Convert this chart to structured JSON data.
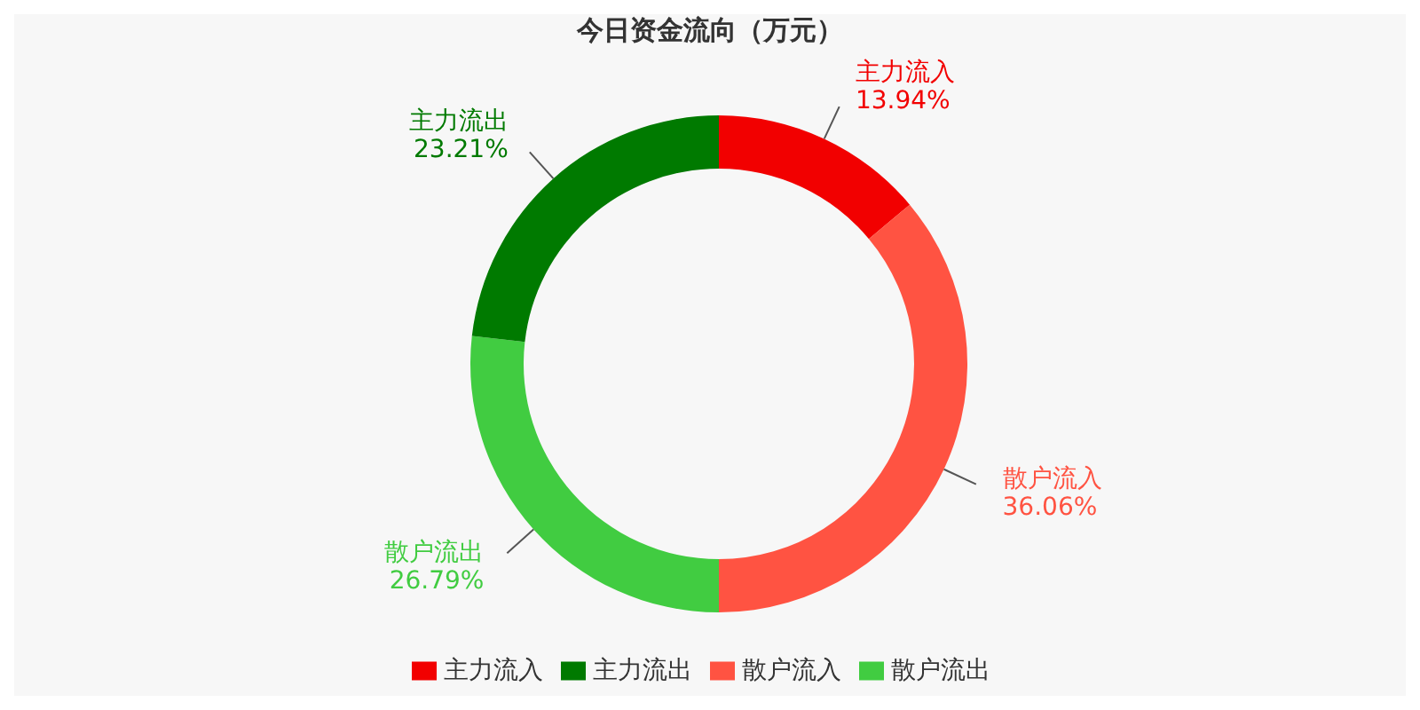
{
  "chart_data": {
    "type": "donut",
    "title": "今日资金流向（万元）",
    "categories": [
      "主力流入",
      "散户流入",
      "散户流出",
      "主力流出"
    ],
    "values": [
      13.94,
      36.06,
      26.79,
      23.21
    ],
    "value_labels": [
      "13.94%",
      "36.06%",
      "26.79%",
      "23.21%"
    ],
    "colors": [
      "#f20000",
      "#ff5342",
      "#41cc41",
      "#007a00"
    ],
    "legend": "bottom"
  }
}
